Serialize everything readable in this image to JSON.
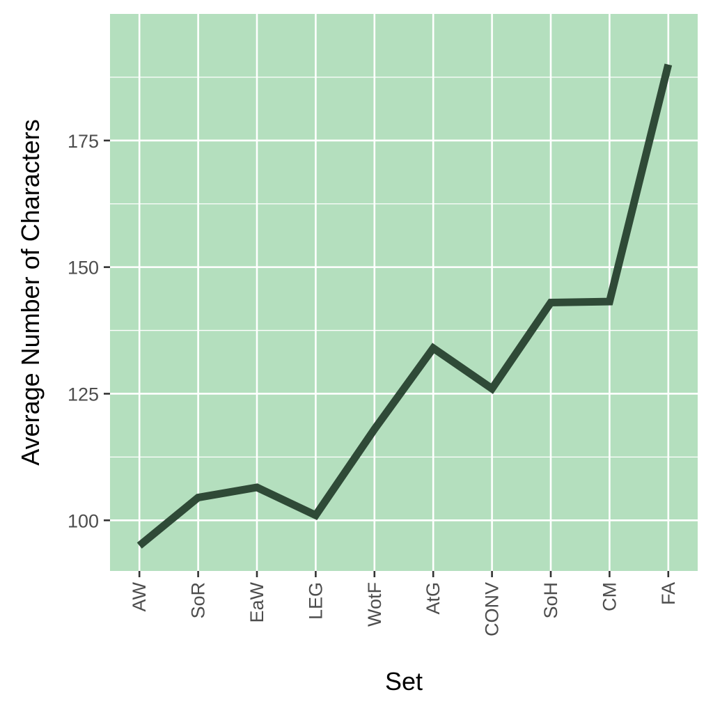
{
  "chart_data": {
    "type": "line",
    "title": "",
    "xlabel": "Set",
    "ylabel": "Average Number of Characters",
    "categories": [
      "AW",
      "SoR",
      "EaW",
      "LEG",
      "WotF",
      "AtG",
      "CONV",
      "SoH",
      "CM",
      "FA"
    ],
    "series": [
      {
        "values": [
          95,
          104.5,
          106.5,
          101,
          118,
          134,
          126,
          143,
          143.2,
          190
        ]
      }
    ],
    "ylim": [
      90,
      200
    ],
    "yticks": [
      100,
      125,
      150,
      175
    ],
    "grid": true,
    "legend": "none",
    "colors": {
      "panel": "#b4dfbe",
      "grid": "#ffffff",
      "line": "#2f4a37",
      "tick": "#333333"
    }
  }
}
